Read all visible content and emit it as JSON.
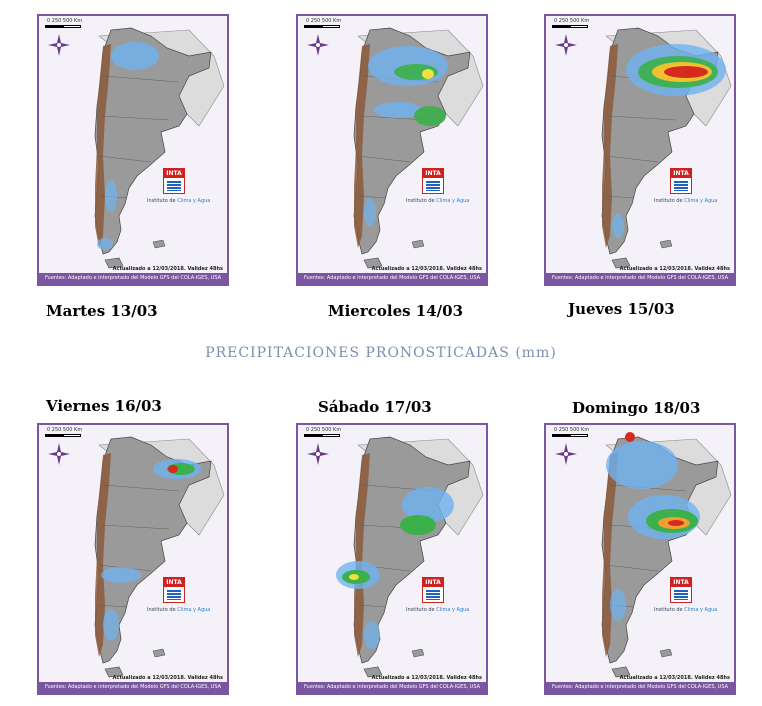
{
  "title": "PRECIPITACIONES PRONOSTICADAS (mm)",
  "map_scale_text": "0    250    500 Km",
  "logo_text": "INTA",
  "institute_prefix": "Instituto de ",
  "institute_highlight": "Clima y Agua",
  "update_text": "Actualizado a 12/03/2018. Validez 48hs",
  "source_text": "Fuentes: Adaptado e interpretado del Modelo GFS del COLA-IGES, USA",
  "colors": {
    "border": "#7a55a0",
    "title": "#7c8fb0"
  },
  "days": [
    {
      "label": "Martes 13/03",
      "intensity": "low"
    },
    {
      "label": "Miercoles 14/03",
      "intensity": "medium"
    },
    {
      "label": "Jueves 15/03",
      "intensity": "high"
    },
    {
      "label": "Viernes 16/03",
      "intensity": "medium"
    },
    {
      "label": "Sábado 17/03",
      "intensity": "medium"
    },
    {
      "label": "Domingo 18/03",
      "intensity": "high"
    }
  ]
}
